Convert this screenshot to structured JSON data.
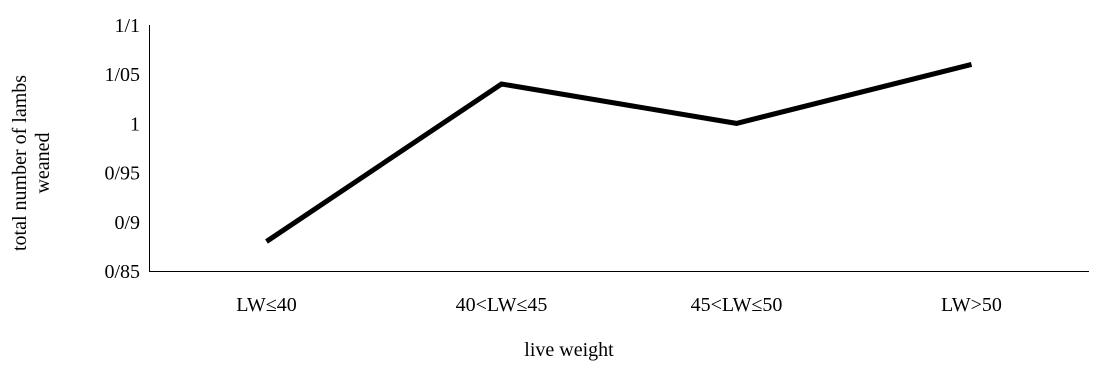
{
  "chart_data": {
    "type": "line",
    "title": "",
    "xlabel": "live weight",
    "ylabel_lines": [
      "total number of lambs",
      "weaned"
    ],
    "categories": [
      "LW≤40",
      "40<LW≤45",
      "45<LW≤50",
      "LW>50"
    ],
    "series": [
      {
        "values": [
          0.88,
          1.04,
          1.0,
          1.06
        ],
        "color": "#000000"
      }
    ],
    "ylim": [
      0.85,
      1.1
    ],
    "yticks": [
      {
        "value": 0.85,
        "label": "0/85"
      },
      {
        "value": 0.9,
        "label": "0/9"
      },
      {
        "value": 0.95,
        "label": "0/95"
      },
      {
        "value": 1.0,
        "label": "1"
      },
      {
        "value": 1.05,
        "label": "1/05"
      },
      {
        "value": 1.1,
        "label": "1/1"
      }
    ],
    "grid": false,
    "legend": "none"
  }
}
